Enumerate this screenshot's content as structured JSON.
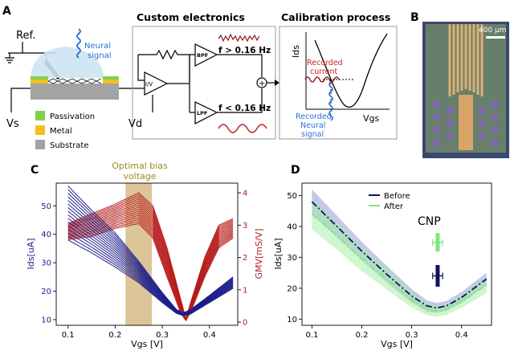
{
  "panels": {
    "A": "A",
    "B": "B",
    "C": "C",
    "D": "D"
  },
  "schematic": {
    "ref_label": "Ref.",
    "neural_signal": [
      "Neural",
      "signal"
    ],
    "vs_label": "Vs",
    "legend": [
      {
        "label": "Passivation",
        "color": "#7fd24a"
      },
      {
        "label": "Metal",
        "color": "#f2c01e"
      },
      {
        "label": "Substrate",
        "color": "#a3a3a3"
      }
    ],
    "electronics_title": "Custom electronics",
    "iv_label": "I/V",
    "bpf_label": "BPF",
    "lpf_label": "LPF",
    "vd_label": "Vd",
    "f_high": "f > 0.16 Hz",
    "f_low": "f < 0.16 Hz",
    "plus_sign": "+",
    "calibration_title": "Calibration process",
    "ids_axis": "Ids",
    "vgs_axis": "Vgs",
    "recorded_current": [
      "Recorded",
      "current"
    ],
    "recorded_neural": [
      "Recorded",
      "Neural",
      "signal"
    ]
  },
  "micrograph": {
    "scale_bar": "400 µm"
  },
  "colors": {
    "blue_series": "#1c1d8a",
    "red_series": "#b81c1c",
    "band": "#d8c08c",
    "before": "#0d1259",
    "after": "#7de87d",
    "accent_blue": "#2a6fd6",
    "red_text": "#d42020"
  },
  "chart_data": [
    {
      "type": "line",
      "xlabel": "Vgs [V]",
      "ylabel_left": "Ids[uA]",
      "ylabel_right": "GMV[mS/V]",
      "annotation": [
        "Optimal bias",
        "voltage"
      ],
      "xlim": [
        0.075,
        0.46
      ],
      "ylim_left": [
        8,
        58
      ],
      "ylim_right": [
        -0.1,
        4.3
      ],
      "xticks": [
        "0.1",
        "0.2",
        "0.3",
        "0.4"
      ],
      "yticks_left": [
        "10",
        "20",
        "30",
        "40",
        "50"
      ],
      "yticks_right": [
        "0",
        "1",
        "2",
        "3",
        "4"
      ],
      "optimal_band": [
        0.222,
        0.278
      ],
      "series_count": 16,
      "ids_curve": {
        "x": [
          0.1,
          0.15,
          0.2,
          0.25,
          0.3,
          0.33,
          0.345,
          0.36,
          0.4,
          0.45
        ],
        "y_min": [
          38.0,
          33.5,
          28.5,
          23.0,
          16.0,
          12.2,
          11.4,
          12.0,
          16.0,
          21.0
        ],
        "y_max": [
          57.0,
          48.5,
          40.5,
          30.5,
          19.5,
          13.5,
          12.4,
          13.5,
          18.5,
          25.0
        ]
      },
      "gm_curve": {
        "x": [
          0.1,
          0.15,
          0.2,
          0.25,
          0.28,
          0.31,
          0.34,
          0.35,
          0.36,
          0.39,
          0.42,
          0.45
        ],
        "y_min": [
          2.55,
          2.65,
          2.9,
          3.05,
          2.6,
          1.4,
          0.25,
          0.05,
          0.3,
          1.4,
          2.3,
          2.6
        ],
        "y_max": [
          3.05,
          3.35,
          3.65,
          4.0,
          3.6,
          2.3,
          0.65,
          0.1,
          0.6,
          2.0,
          3.0,
          3.2
        ]
      }
    },
    {
      "type": "line",
      "xlabel": "Vgs [V]",
      "ylabel": "Ids[uA]",
      "xlim": [
        0.08,
        0.46
      ],
      "ylim": [
        8,
        54
      ],
      "xticks": [
        "0.1",
        "0.2",
        "0.3",
        "0.4"
      ],
      "yticks": [
        "10",
        "20",
        "30",
        "40",
        "50"
      ],
      "legend": [
        "Before",
        "After"
      ],
      "annotation": "CNP",
      "series": [
        {
          "name": "Before",
          "x": [
            0.1,
            0.15,
            0.2,
            0.25,
            0.3,
            0.33,
            0.35,
            0.37,
            0.4,
            0.45
          ],
          "y": [
            48.0,
            40.0,
            32.0,
            24.5,
            17.5,
            14.3,
            13.6,
            14.3,
            17.0,
            23.0
          ],
          "band": [
            4.0,
            3.5,
            3.0,
            2.7,
            2.2,
            1.8,
            1.6,
            1.6,
            1.8,
            2.0
          ]
        },
        {
          "name": "After",
          "x": [
            0.1,
            0.15,
            0.2,
            0.25,
            0.3,
            0.33,
            0.35,
            0.37,
            0.4,
            0.45
          ],
          "y": [
            44.0,
            37.0,
            29.5,
            23.0,
            16.3,
            13.3,
            12.6,
            13.2,
            15.8,
            21.0
          ],
          "band": [
            5.0,
            4.5,
            4.0,
            3.4,
            2.6,
            2.0,
            1.8,
            1.8,
            2.2,
            2.6
          ]
        }
      ],
      "cnp": {
        "before": {
          "x": 0.352,
          "y": 24.0,
          "x_err": 0.01,
          "y_err": 3.5
        },
        "after": {
          "x": 0.352,
          "y": 34.8,
          "x_err": 0.01,
          "y_err": 3.0
        }
      }
    }
  ]
}
